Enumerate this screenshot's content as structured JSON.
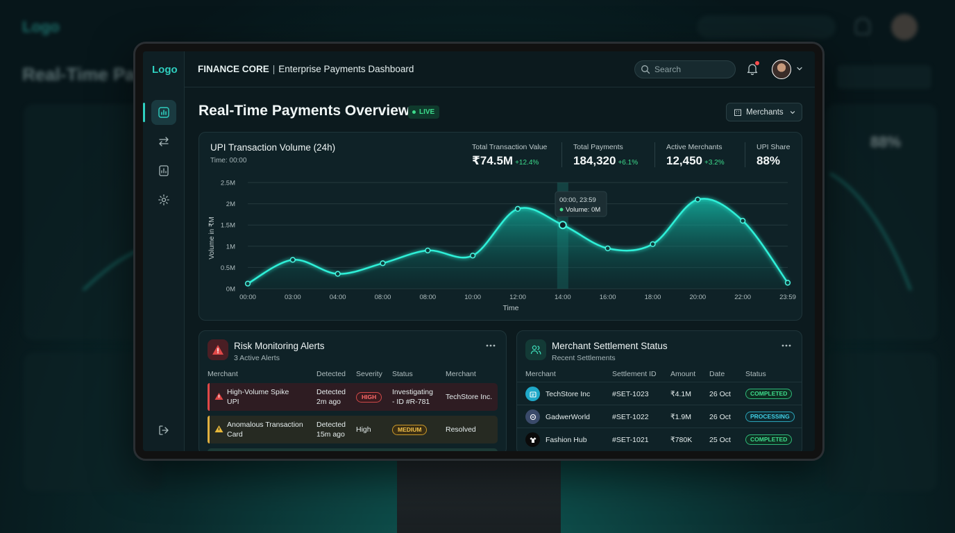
{
  "background": {
    "logo": "Logo",
    "title": "Real-Time Pa",
    "upi_share": "88%"
  },
  "sidebar": {
    "logo": "Logo",
    "items": [
      {
        "icon": "bar-chart-icon",
        "active": true
      },
      {
        "icon": "transfer-arrows-icon",
        "active": false
      },
      {
        "icon": "report-icon",
        "active": false
      },
      {
        "icon": "gear-icon",
        "active": false
      }
    ],
    "logout_icon": "logout-icon"
  },
  "header": {
    "brand_bold": "FINANCE CORE",
    "brand_sep": "|",
    "brand_rest": "Enterprise Payments Dashboard",
    "search_placeholder": "Search"
  },
  "page": {
    "title": "Real-Time Payments Overview",
    "live_label": "LIVE",
    "filter_label": "Merchants"
  },
  "chart_card": {
    "title": "UPI Transaction Volume (24h)",
    "subtitle": "Time: 00:00",
    "kpis": [
      {
        "label": "Total Transaction Value",
        "value": "₹74.5M",
        "delta": "+12.4%"
      },
      {
        "label": "Total Payments",
        "value": "184,320",
        "delta": "+6.1%"
      },
      {
        "label": "Active Merchants",
        "value": "12,450",
        "delta": "+3.2%"
      },
      {
        "label": "UPI Share",
        "value": "88%",
        "delta": ""
      }
    ],
    "tooltip": {
      "time": "00:00, 23:59",
      "label": "Volume: 0M"
    }
  },
  "chart_data": {
    "type": "area",
    "xlabel": "Time",
    "ylabel": "Volume in ₹M",
    "x": [
      "00:00",
      "03:00",
      "04:00",
      "08:00",
      "08:00",
      "10:00",
      "12:00",
      "14:00",
      "16:00",
      "18:00",
      "20:00",
      "22:00",
      "23:59"
    ],
    "y_ticks": [
      "0M",
      "0.5M",
      "1M",
      "1.5M",
      "2M",
      "2.5M"
    ],
    "ylim": [
      0,
      2.5
    ],
    "series": [
      {
        "values": [
          0.12,
          0.68,
          0.35,
          0.6,
          0.9,
          0.78,
          1.88,
          1.5,
          0.95,
          1.05,
          2.1,
          1.6,
          0.14
        ]
      }
    ],
    "highlight_index": 7,
    "grid": true,
    "colors": {
      "line": "#2ff0d8",
      "fill": "#0fa898"
    }
  },
  "risk": {
    "title": "Risk Monitoring Alerts",
    "subtitle": "3 Active Alerts",
    "headers": [
      "Merchant",
      "Detected",
      "Severity",
      "Status",
      "Merchant"
    ],
    "rows": [
      {
        "name": "High-Volume Spike",
        "type": "UPI",
        "detected": "Detected",
        "ago": "2m ago",
        "severity": "HIGH",
        "status1": "Investigating",
        "status2": "- ID #R-781",
        "merchant": "TechStore Inc."
      },
      {
        "name": "Anomalous Transaction",
        "type": "Card",
        "detected": "Detected",
        "ago": "15m ago",
        "severity": "MEDIUM",
        "severity_text": "High",
        "status1": "Resolved",
        "merchant": ""
      }
    ]
  },
  "settlement": {
    "title": "Merchant Settlement Status",
    "subtitle": "Recent Settlements",
    "headers": [
      "Merchant",
      "Settlement ID",
      "Amount",
      "Date",
      "Status"
    ],
    "rows": [
      {
        "merchant": "TechStore Inc",
        "id": "#SET-1023",
        "amount": "₹4.1M",
        "date": "26 Oct",
        "status": "COMPLETED",
        "icon": "store-icon"
      },
      {
        "merchant": "GadwerWorld",
        "id": "#SET-1022",
        "amount": "₹1.9M",
        "date": "26 Oct",
        "status": "PROCESSING",
        "icon": "gadget-icon"
      },
      {
        "merchant": "Fashion Hub",
        "id": "#SET-1021",
        "amount": "₹780K",
        "date": "25 Oct",
        "status": "COMPLETED",
        "icon": "shirt-icon"
      }
    ]
  }
}
